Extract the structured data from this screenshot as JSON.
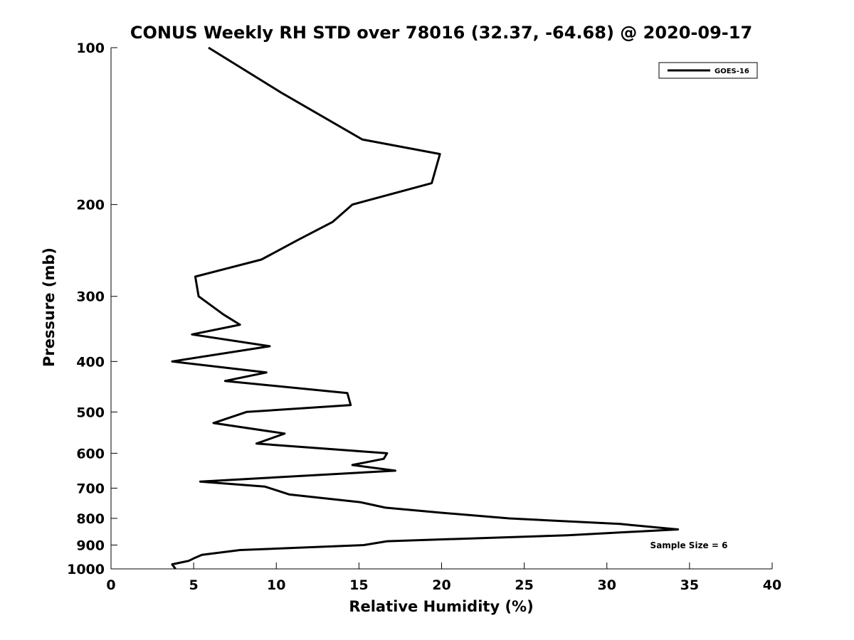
{
  "chart_data": {
    "type": "line",
    "title": "CONUS Weekly RH STD over 78016 (32.37, -64.68) @ 2020-09-17",
    "xlabel": "Relative Humidity (%)",
    "ylabel": "Pressure (mb)",
    "xlim": [
      0,
      40
    ],
    "ylim": [
      100,
      1000
    ],
    "y_scale": "log",
    "y_reversed": true,
    "grid": false,
    "legend_position": "top-right",
    "x_ticks": [
      0,
      5,
      10,
      15,
      20,
      25,
      30,
      35,
      40
    ],
    "y_ticks": [
      100,
      200,
      300,
      400,
      500,
      600,
      700,
      800,
      900,
      1000
    ],
    "annotation": "Sample Size = 6",
    "series": [
      {
        "name": "GOES-16",
        "color": "#000000",
        "points": [
          [
            5.9,
            100
          ],
          [
            10.3,
            122
          ],
          [
            15.2,
            150
          ],
          [
            19.9,
            160
          ],
          [
            19.4,
            182
          ],
          [
            14.6,
            200
          ],
          [
            13.4,
            216
          ],
          [
            11.3,
            234
          ],
          [
            9.1,
            255
          ],
          [
            5.1,
            275
          ],
          [
            5.3,
            300
          ],
          [
            6.8,
            325
          ],
          [
            7.8,
            340
          ],
          [
            4.9,
            355
          ],
          [
            9.6,
            374
          ],
          [
            3.7,
            400
          ],
          [
            9.4,
            420
          ],
          [
            6.9,
            436
          ],
          [
            14.3,
            460
          ],
          [
            14.5,
            485
          ],
          [
            8.2,
            500
          ],
          [
            6.2,
            525
          ],
          [
            10.5,
            550
          ],
          [
            8.8,
            575
          ],
          [
            16.7,
            600
          ],
          [
            16.5,
            615
          ],
          [
            14.6,
            632
          ],
          [
            17.2,
            648
          ],
          [
            5.4,
            680
          ],
          [
            9.3,
            695
          ],
          [
            10.8,
            720
          ],
          [
            15.1,
            745
          ],
          [
            16.6,
            763
          ],
          [
            19.9,
            780
          ],
          [
            24.1,
            800
          ],
          [
            30.8,
            820
          ],
          [
            34.3,
            840
          ],
          [
            27.6,
            862
          ],
          [
            16.7,
            885
          ],
          [
            15.3,
            900
          ],
          [
            7.8,
            920
          ],
          [
            5.5,
            940
          ],
          [
            5.0,
            955
          ],
          [
            4.7,
            965
          ],
          [
            3.7,
            980
          ],
          [
            3.9,
            1000
          ]
        ]
      }
    ]
  }
}
